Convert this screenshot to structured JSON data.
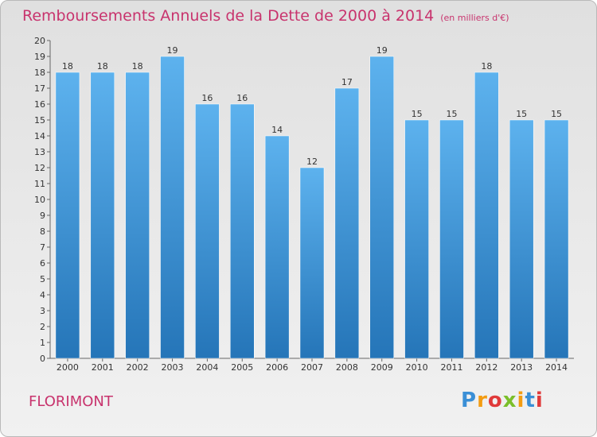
{
  "chart_data": {
    "type": "bar",
    "title": "Remboursements Annuels de la Dette de 2000 à 2014",
    "subtitle": "(en milliers d'€)",
    "categories": [
      "2000",
      "2001",
      "2002",
      "2003",
      "2004",
      "2005",
      "2006",
      "2007",
      "2008",
      "2009",
      "2010",
      "2011",
      "2012",
      "2013",
      "2014"
    ],
    "values": [
      18,
      18,
      18,
      19,
      16,
      16,
      14,
      12,
      17,
      19,
      15,
      15,
      18,
      15,
      15
    ],
    "ylim": [
      0,
      20
    ],
    "yticks": [
      0,
      1,
      2,
      3,
      4,
      5,
      6,
      7,
      8,
      9,
      10,
      11,
      12,
      13,
      14,
      15,
      16,
      17,
      18,
      19,
      20
    ],
    "grid": false,
    "bar_color": "#3a8fd6",
    "xlabel": "",
    "ylabel": ""
  },
  "footer": {
    "commune": "FLORIMONT"
  },
  "logo": {
    "text": "Proxiti",
    "letter_colors": [
      "#3a8fd6",
      "#f39c12",
      "#e03a3a",
      "#7bbf2a",
      "#f39c12",
      "#3a8fd6",
      "#e03a3a"
    ]
  },
  "colors": {
    "title": "#c8336d",
    "frame_border": "#b9b9b9"
  }
}
